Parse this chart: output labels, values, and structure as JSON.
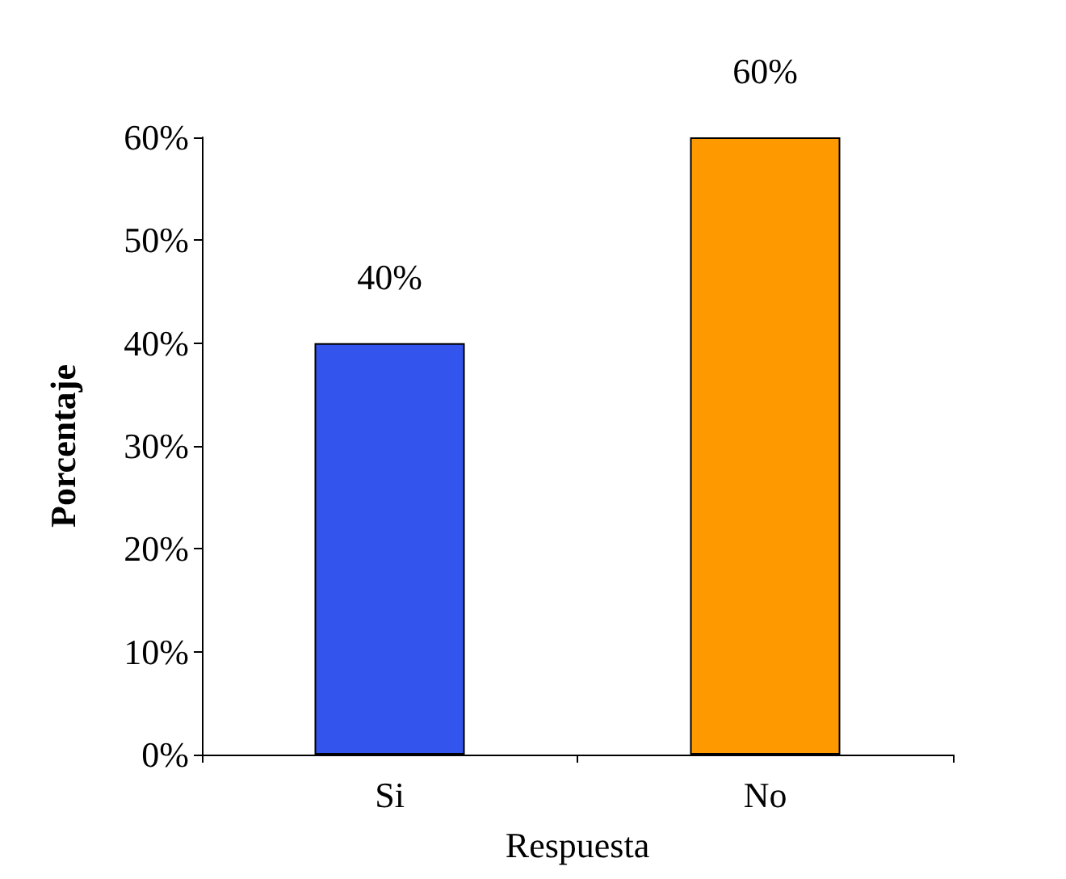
{
  "chart_data": {
    "type": "bar",
    "xlabel": "Respuesta",
    "ylabel": "Porcentaje",
    "categories": [
      "Si",
      "No"
    ],
    "values": [
      40,
      60
    ],
    "colors": [
      "#3355ee",
      "#ff9900"
    ],
    "value_labels": [
      "40%",
      "60%"
    ],
    "ylim": [
      0,
      60
    ],
    "yticks": [
      {
        "value": 0,
        "label": "0%"
      },
      {
        "value": 10,
        "label": "10%"
      },
      {
        "value": 20,
        "label": "20%"
      },
      {
        "value": 30,
        "label": "30%"
      },
      {
        "value": 40,
        "label": "40%"
      },
      {
        "value": 50,
        "label": "50%"
      },
      {
        "value": 60,
        "label": "60%"
      }
    ],
    "grid": false
  }
}
